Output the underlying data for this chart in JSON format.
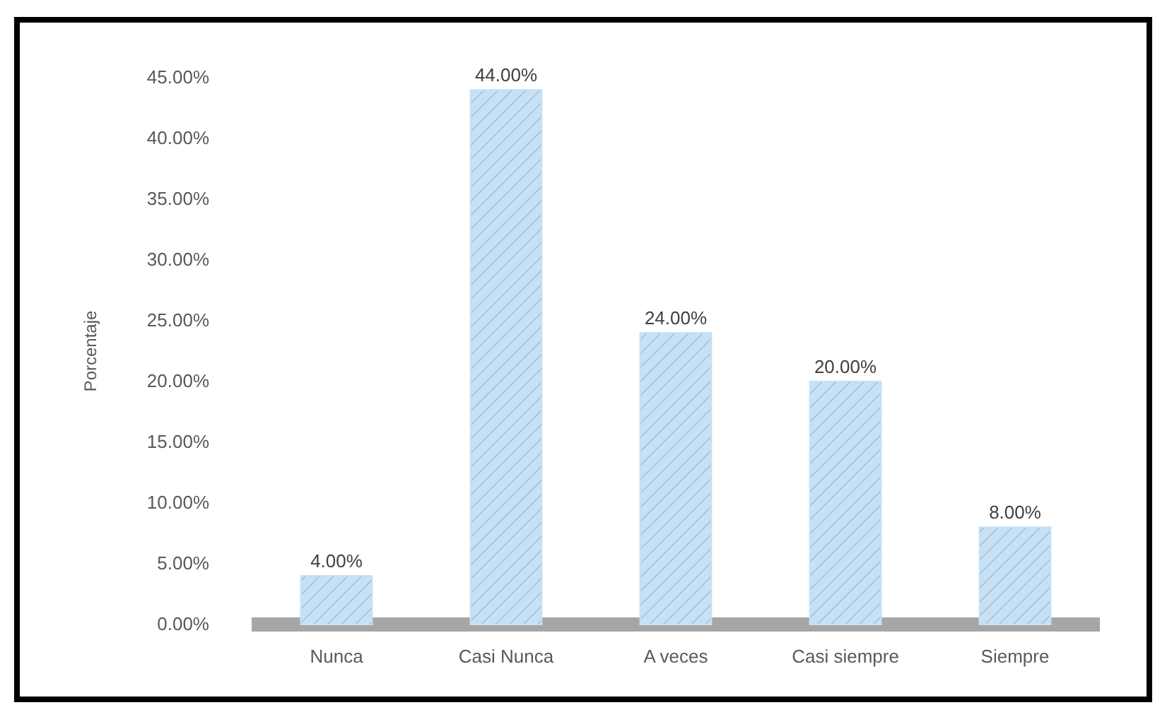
{
  "chart_data": {
    "type": "bar",
    "ylabel": "Porcentaje",
    "categories": [
      "Nunca",
      "Casi Nunca",
      "A veces",
      "Casi siempre",
      "Siempre"
    ],
    "values": [
      4,
      44,
      24,
      20,
      8
    ],
    "color": "#c6e0f5",
    "value_labels": [
      "4.00%",
      "44.00%",
      "24.00%",
      "20.00%",
      "8.00%"
    ],
    "ylim": [
      0,
      45
    ],
    "yticks": [
      {
        "value": 0,
        "label": "0.00%"
      },
      {
        "value": 5,
        "label": "5.00%"
      },
      {
        "value": 10,
        "label": "10.00%"
      },
      {
        "value": 15,
        "label": "15.00%"
      },
      {
        "value": 20,
        "label": "20.00%"
      },
      {
        "value": 25,
        "label": "25.00%"
      },
      {
        "value": 30,
        "label": "30.00%"
      },
      {
        "value": 35,
        "label": "35.00%"
      },
      {
        "value": 40,
        "label": "40.00%"
      },
      {
        "value": 45,
        "label": "45.00%"
      }
    ],
    "grid": false
  }
}
